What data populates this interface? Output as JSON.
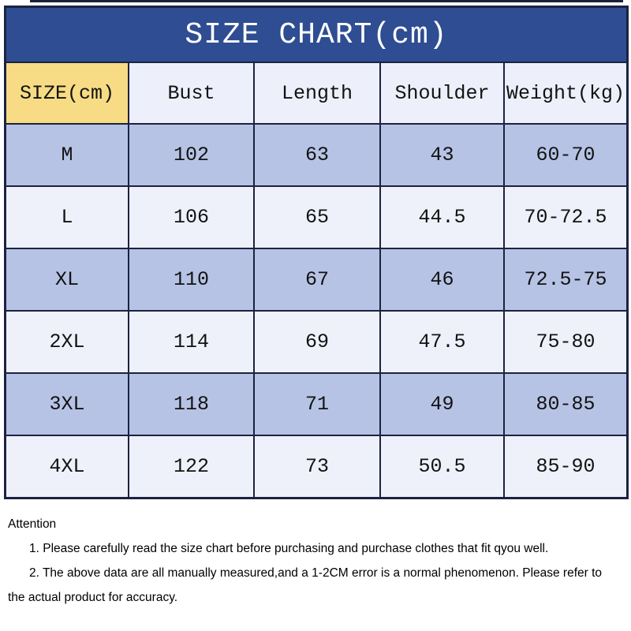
{
  "chart_data": {
    "type": "table",
    "title": "SIZE CHART(cm)",
    "columns": [
      "SIZE(cm)",
      "Bust",
      "Length",
      "Shoulder",
      "Weight(kg)"
    ],
    "rows": [
      [
        "M",
        102,
        63,
        43,
        "60-70"
      ],
      [
        "L",
        106,
        65,
        44.5,
        "70-72.5"
      ],
      [
        "XL",
        110,
        67,
        46,
        "72.5-75"
      ],
      [
        "2XL",
        114,
        69,
        47.5,
        "75-80"
      ],
      [
        "3XL",
        118,
        71,
        49,
        "80-85"
      ],
      [
        "4XL",
        122,
        73,
        50.5,
        "85-90"
      ]
    ]
  },
  "notes": {
    "heading": "Attention",
    "items": [
      "1. Please carefully read the size chart before purchasing and purchase clothes that fit qyou well.",
      "2. The above data are all manually measured,and a 1-2CM error is a normal phenomenon. Please refer to the actual product for accuracy."
    ]
  },
  "colors": {
    "title_bar_bg": "#2e4d92",
    "title_text": "#ffffff",
    "header_highlight_bg": "#f7dc85",
    "header_bg": "#edeffa",
    "row_alt_bg": "#b6c3e5",
    "row_bg": "#eef1fa",
    "border": "#1c2240",
    "body_text": "#121212"
  }
}
